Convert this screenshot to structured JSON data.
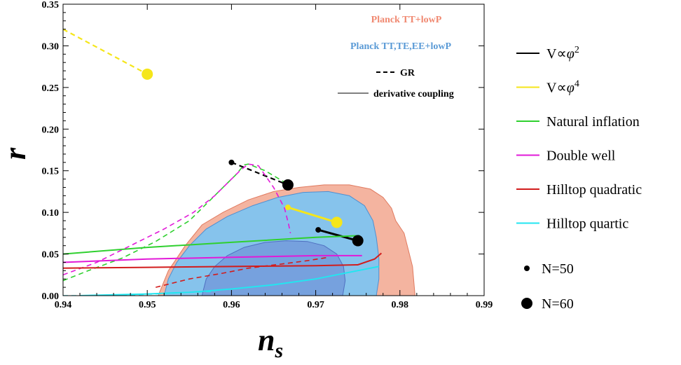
{
  "chart_data": {
    "type": "scatter",
    "xlabel_main": "n",
    "xlabel_sub": "s",
    "ylabel": "r",
    "xlim": [
      0.94,
      0.99
    ],
    "ylim": [
      0.0,
      0.35
    ],
    "x_ticks": [
      "0.94",
      "0.95",
      "0.96",
      "0.97",
      "0.98",
      "0.99"
    ],
    "x_tick_values": [
      0.94,
      0.95,
      0.96,
      0.97,
      0.98,
      0.99
    ],
    "y_ticks": [
      "0.00",
      "0.05",
      "0.10",
      "0.15",
      "0.20",
      "0.25",
      "0.30",
      "0.35"
    ],
    "y_tick_values": [
      0.0,
      0.05,
      0.1,
      0.15,
      0.2,
      0.25,
      0.3,
      0.35
    ],
    "contours": [
      {
        "name": "Planck TT+lowP",
        "color": "#f4b4a0",
        "outer": [
          [
            0.9513,
            0.0
          ],
          [
            0.9525,
            0.03
          ],
          [
            0.9545,
            0.06
          ],
          [
            0.9565,
            0.085
          ],
          [
            0.959,
            0.1
          ],
          [
            0.962,
            0.115
          ],
          [
            0.965,
            0.125
          ],
          [
            0.968,
            0.13
          ],
          [
            0.971,
            0.133
          ],
          [
            0.974,
            0.133
          ],
          [
            0.9765,
            0.128
          ],
          [
            0.978,
            0.118
          ],
          [
            0.979,
            0.105
          ],
          [
            0.9795,
            0.09
          ],
          [
            0.9805,
            0.075
          ],
          [
            0.981,
            0.055
          ],
          [
            0.9815,
            0.035
          ],
          [
            0.9818,
            0.0
          ]
        ],
        "inner": []
      },
      {
        "name": "Planck TT,TE,EE+lowP",
        "color": "#86c3ec",
        "outer": [
          [
            0.952,
            0.0
          ],
          [
            0.9525,
            0.02
          ],
          [
            0.9535,
            0.04
          ],
          [
            0.955,
            0.06
          ],
          [
            0.957,
            0.08
          ],
          [
            0.9595,
            0.095
          ],
          [
            0.9625,
            0.108
          ],
          [
            0.9655,
            0.118
          ],
          [
            0.9685,
            0.124
          ],
          [
            0.9715,
            0.125
          ],
          [
            0.974,
            0.12
          ],
          [
            0.9758,
            0.108
          ],
          [
            0.9768,
            0.09
          ],
          [
            0.9772,
            0.07
          ],
          [
            0.9775,
            0.045
          ],
          [
            0.9775,
            0.02
          ],
          [
            0.9772,
            0.0
          ]
        ],
        "inner": [
          [
            0.9565,
            0.0
          ],
          [
            0.957,
            0.02
          ],
          [
            0.958,
            0.035
          ],
          [
            0.9595,
            0.048
          ],
          [
            0.9615,
            0.058
          ],
          [
            0.964,
            0.064
          ],
          [
            0.9665,
            0.066
          ],
          [
            0.969,
            0.065
          ],
          [
            0.971,
            0.06
          ],
          [
            0.9725,
            0.05
          ],
          [
            0.9733,
            0.035
          ],
          [
            0.9735,
            0.018
          ],
          [
            0.9732,
            0.0
          ]
        ]
      }
    ],
    "series": [
      {
        "name": "V∝φ²",
        "color": "#000000",
        "gr": [
          [
            0.96,
            0.16
          ],
          [
            0.9667,
            0.133
          ]
        ],
        "dc": [
          [
            0.9703,
            0.079
          ],
          [
            0.975,
            0.066
          ]
        ],
        "points": [
          [
            0.96,
            0.16,
            "N=50"
          ],
          [
            0.9667,
            0.133,
            "N=60"
          ],
          [
            0.9703,
            0.079,
            "N=50"
          ],
          [
            0.975,
            0.066,
            "N=60"
          ]
        ]
      },
      {
        "name": "V∝φ⁴",
        "color": "#f5e61a",
        "gr": [
          [
            0.94,
            0.32
          ],
          [
            0.95,
            0.266
          ]
        ],
        "dc": [
          [
            0.9667,
            0.106
          ],
          [
            0.9725,
            0.088
          ]
        ],
        "points": [
          [
            0.95,
            0.266,
            "N=60"
          ],
          [
            0.9667,
            0.106,
            "N=50"
          ],
          [
            0.9725,
            0.088,
            "N=60"
          ]
        ]
      },
      {
        "name": "Natural inflation",
        "color": "#2fd02f",
        "gr": [
          [
            0.94,
            0.018
          ],
          [
            0.943,
            0.03
          ],
          [
            0.947,
            0.045
          ],
          [
            0.951,
            0.065
          ],
          [
            0.955,
            0.09
          ],
          [
            0.9575,
            0.115
          ],
          [
            0.9595,
            0.135
          ],
          [
            0.9605,
            0.145
          ],
          [
            0.9615,
            0.157
          ],
          [
            0.962,
            0.158
          ],
          [
            0.964,
            0.15
          ],
          [
            0.9665,
            0.135
          ]
        ],
        "dc": [
          [
            0.94,
            0.05
          ],
          [
            0.95,
            0.058
          ],
          [
            0.96,
            0.064
          ],
          [
            0.97,
            0.07
          ],
          [
            0.9752,
            0.072
          ]
        ],
        "points": []
      },
      {
        "name": "Double well",
        "color": "#e21ad8",
        "gr": [
          [
            0.94,
            0.025
          ],
          [
            0.944,
            0.04
          ],
          [
            0.948,
            0.06
          ],
          [
            0.952,
            0.08
          ],
          [
            0.9555,
            0.1
          ],
          [
            0.958,
            0.12
          ],
          [
            0.96,
            0.14
          ],
          [
            0.961,
            0.15
          ],
          [
            0.962,
            0.158
          ],
          [
            0.9632,
            0.156
          ],
          [
            0.965,
            0.13
          ],
          [
            0.9663,
            0.105
          ],
          [
            0.9668,
            0.085
          ],
          [
            0.967,
            0.075
          ]
        ],
        "dc": [
          [
            0.94,
            0.04
          ],
          [
            0.95,
            0.044
          ],
          [
            0.96,
            0.046
          ],
          [
            0.97,
            0.048
          ],
          [
            0.9755,
            0.048
          ]
        ],
        "points": []
      },
      {
        "name": "Hilltop quadratic",
        "color": "#d21c1c",
        "gr": [
          [
            0.951,
            0.01
          ],
          [
            0.955,
            0.02
          ],
          [
            0.959,
            0.027
          ],
          [
            0.962,
            0.033
          ],
          [
            0.966,
            0.038
          ],
          [
            0.969,
            0.042
          ],
          [
            0.9715,
            0.046
          ]
        ],
        "dc": [
          [
            0.94,
            0.033
          ],
          [
            0.95,
            0.034
          ],
          [
            0.96,
            0.035
          ],
          [
            0.97,
            0.036
          ],
          [
            0.975,
            0.037
          ],
          [
            0.977,
            0.044
          ],
          [
            0.9778,
            0.051
          ]
        ],
        "points": []
      },
      {
        "name": "Hilltop quartic",
        "color": "#22e6f0",
        "gr": [
          [
            0.94,
            0.0
          ],
          [
            0.946,
            0.0
          ],
          [
            0.951,
            0.002
          ],
          [
            0.955,
            0.004
          ],
          [
            0.958,
            0.005
          ]
        ],
        "dc": [
          [
            0.942,
            0.0
          ],
          [
            0.95,
            0.002
          ],
          [
            0.955,
            0.004
          ],
          [
            0.96,
            0.008
          ],
          [
            0.965,
            0.013
          ],
          [
            0.97,
            0.02
          ],
          [
            0.975,
            0.03
          ],
          [
            0.9775,
            0.035
          ]
        ],
        "points": []
      }
    ],
    "inner_legend": {
      "planck1": {
        "label": "Planck TT+lowP",
        "color": "#f08870"
      },
      "planck2": {
        "label": "Planck TT,TE,EE+lowP",
        "color": "#5a9ad6"
      },
      "gr_label": "GR",
      "dc_label": "derivative coupling"
    },
    "legend_location": "right",
    "size_legend": [
      {
        "label": "N=50",
        "size": "small"
      },
      {
        "label": "N=60",
        "size": "large"
      }
    ]
  }
}
